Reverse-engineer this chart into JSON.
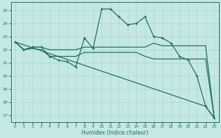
{
  "xlabel": "Humidex (Indice chaleur)",
  "bg_color": "#c5e8e5",
  "grid_color": "#a8d4d0",
  "line_color": "#1e6e65",
  "xlim": [
    -0.5,
    23.5
  ],
  "ylim": [
    16.5,
    25.6
  ],
  "yticks": [
    17,
    18,
    19,
    20,
    21,
    22,
    23,
    24,
    25
  ],
  "xticks": [
    0,
    1,
    2,
    3,
    4,
    5,
    6,
    7,
    8,
    9,
    10,
    11,
    12,
    13,
    14,
    15,
    16,
    17,
    18,
    19,
    20,
    21,
    22,
    23
  ],
  "series": [
    {
      "x": [
        0,
        1,
        2,
        3,
        4,
        5,
        6,
        7,
        8,
        9,
        10,
        11,
        12,
        13,
        14,
        15,
        16,
        17,
        18,
        19,
        20,
        21,
        22,
        23
      ],
      "y": [
        22.6,
        22.0,
        22.2,
        22.2,
        21.5,
        21.2,
        21.1,
        20.7,
        22.9,
        22.1,
        25.1,
        25.1,
        24.5,
        23.9,
        24.0,
        24.5,
        23.0,
        22.9,
        22.5,
        21.5,
        21.2,
        20.0,
        17.7,
        16.8
      ],
      "marker": "+",
      "lw": 0.9
    },
    {
      "x": [
        0,
        1,
        2,
        3,
        4,
        5,
        6,
        7,
        8,
        9,
        10,
        11,
        12,
        13,
        14,
        15,
        16,
        17,
        18,
        19,
        20,
        21,
        22,
        23
      ],
      "y": [
        22.6,
        22.0,
        22.2,
        22.2,
        22.0,
        22.0,
        22.0,
        22.0,
        22.2,
        22.2,
        22.2,
        22.2,
        22.2,
        22.2,
        22.2,
        22.2,
        22.5,
        22.3,
        22.3,
        22.3,
        22.3,
        22.3,
        22.3,
        16.8
      ],
      "marker": null,
      "lw": 0.9
    },
    {
      "x": [
        0,
        1,
        2,
        3,
        4,
        5,
        6,
        7,
        8,
        9,
        10,
        11,
        12,
        13,
        14,
        15,
        16,
        17,
        18,
        19,
        20,
        21,
        22,
        23
      ],
      "y": [
        22.6,
        22.0,
        22.1,
        22.0,
        21.5,
        21.5,
        21.5,
        21.5,
        21.8,
        21.8,
        21.8,
        21.8,
        21.8,
        21.8,
        21.8,
        21.5,
        21.3,
        21.3,
        21.3,
        21.3,
        21.3,
        21.3,
        21.3,
        16.8
      ],
      "marker": null,
      "lw": 0.9
    },
    {
      "comment": "diagonal line from (0,22.6) to (22,17.7) to (23,16.8)",
      "x": [
        0,
        22,
        23
      ],
      "y": [
        22.6,
        17.7,
        16.8
      ],
      "marker": null,
      "lw": 0.9
    }
  ]
}
